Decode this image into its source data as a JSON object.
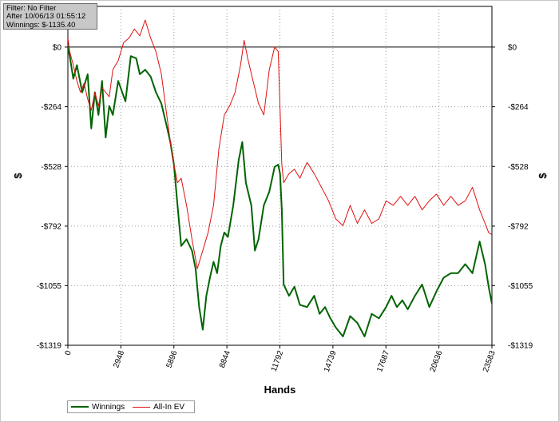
{
  "filter_box": {
    "line1": "Filter: No Filter",
    "line2": "After 10/06/13 01:55:12",
    "line3": "Winnings: $-1135.40"
  },
  "chart_data": {
    "type": "line",
    "xlabel": "Hands",
    "ylabel": "$",
    "y2label": "$",
    "xlim": [
      0,
      23583
    ],
    "ylim": [
      -1319,
      180
    ],
    "x_ticks": [
      0,
      2948,
      5896,
      8844,
      11792,
      14739,
      17687,
      20636,
      23583
    ],
    "x_tick_labels": [
      "0",
      "2948",
      "5896",
      "8844",
      "11792",
      "14739",
      "17687",
      "20636",
      "23583"
    ],
    "y_ticks": [
      0,
      -264,
      -528,
      -792,
      -1055,
      -1319
    ],
    "y_tick_labels": [
      "$0",
      "-$264",
      "-$528",
      "-$792",
      "-$1055",
      "-$1319"
    ],
    "grid": true,
    "legend_position": "bottom-left",
    "series": [
      {
        "name": "Winnings",
        "color": "#006400",
        "x": [
          0,
          100,
          300,
          500,
          800,
          1100,
          1300,
          1500,
          1700,
          1900,
          2100,
          2300,
          2500,
          2800,
          3200,
          3500,
          3800,
          4000,
          4300,
          4600,
          4900,
          5200,
          5500,
          5700,
          5900,
          6100,
          6300,
          6600,
          6900,
          7100,
          7300,
          7500,
          7700,
          7900,
          8100,
          8300,
          8500,
          8700,
          8900,
          9200,
          9500,
          9700,
          9900,
          10200,
          10400,
          10600,
          10900,
          11200,
          11500,
          11700,
          11800,
          11900,
          12000,
          12300,
          12600,
          12900,
          13300,
          13700,
          14000,
          14300,
          14600,
          14900,
          15300,
          15700,
          16100,
          16500,
          16900,
          17300,
          17700,
          18000,
          18300,
          18600,
          18900,
          19300,
          19700,
          20100,
          20500,
          20900,
          21300,
          21700,
          22100,
          22500,
          22900,
          23200,
          23400,
          23583
        ],
        "y": [
          0,
          -40,
          -140,
          -80,
          -200,
          -120,
          -360,
          -200,
          -300,
          -150,
          -400,
          -260,
          -300,
          -150,
          -240,
          -40,
          -50,
          -120,
          -100,
          -130,
          -200,
          -250,
          -350,
          -420,
          -520,
          -700,
          -880,
          -850,
          -900,
          -980,
          -1150,
          -1250,
          -1100,
          -1020,
          -950,
          -1000,
          -880,
          -820,
          -840,
          -700,
          -500,
          -420,
          -600,
          -700,
          -900,
          -850,
          -700,
          -640,
          -530,
          -520,
          -560,
          -720,
          -1050,
          -1100,
          -1060,
          -1140,
          -1150,
          -1100,
          -1180,
          -1150,
          -1200,
          -1240,
          -1280,
          -1190,
          -1220,
          -1280,
          -1180,
          -1200,
          -1150,
          -1100,
          -1150,
          -1120,
          -1160,
          -1100,
          -1050,
          -1150,
          -1080,
          -1020,
          -1000,
          -1000,
          -960,
          -1000,
          -860,
          -960,
          -1060,
          -1135
        ]
      },
      {
        "name": "All-In EV",
        "color": "#e01010",
        "x": [
          0,
          100,
          300,
          500,
          700,
          900,
          1100,
          1300,
          1500,
          1700,
          1900,
          2100,
          2300,
          2500,
          2800,
          3100,
          3400,
          3700,
          4000,
          4300,
          4600,
          4900,
          5200,
          5500,
          5800,
          6100,
          6300,
          6600,
          6900,
          7200,
          7500,
          7800,
          8100,
          8400,
          8700,
          9000,
          9300,
          9600,
          9800,
          10000,
          10300,
          10600,
          10900,
          11200,
          11500,
          11700,
          11900,
          12000,
          12300,
          12600,
          12900,
          13300,
          13700,
          14100,
          14500,
          14900,
          15300,
          15700,
          16100,
          16500,
          16900,
          17300,
          17700,
          18100,
          18500,
          18900,
          19300,
          19700,
          20100,
          20500,
          20900,
          21300,
          21700,
          22100,
          22500,
          22900,
          23200,
          23400,
          23583
        ],
        "y": [
          40,
          -20,
          -80,
          -150,
          -200,
          -160,
          -230,
          -280,
          -200,
          -260,
          -180,
          -200,
          -220,
          -100,
          -60,
          20,
          40,
          80,
          50,
          120,
          40,
          -20,
          -120,
          -300,
          -480,
          -600,
          -580,
          -700,
          -850,
          -980,
          -900,
          -820,
          -700,
          -450,
          -300,
          -260,
          -200,
          -80,
          30,
          -50,
          -150,
          -250,
          -300,
          -100,
          0,
          -20,
          -520,
          -600,
          -560,
          -540,
          -580,
          -510,
          -560,
          -620,
          -680,
          -760,
          -790,
          -700,
          -780,
          -720,
          -780,
          -760,
          -680,
          -700,
          -660,
          -700,
          -660,
          -720,
          -680,
          -650,
          -700,
          -660,
          -700,
          -680,
          -620,
          -720,
          -780,
          -820,
          -830
        ]
      }
    ]
  }
}
